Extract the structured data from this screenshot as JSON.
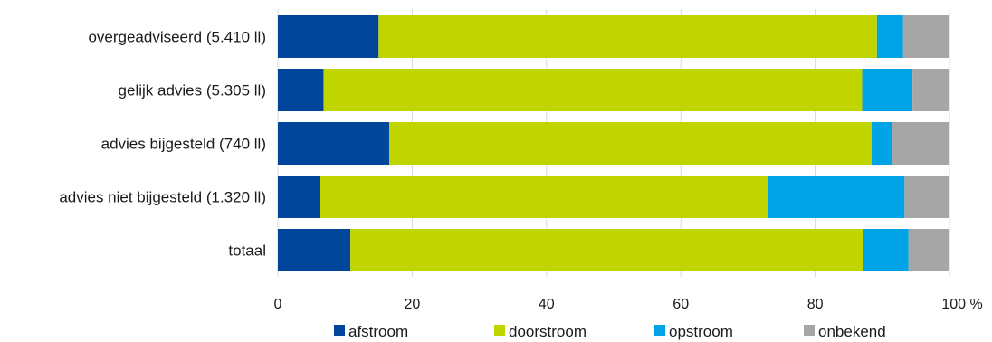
{
  "chart_data": {
    "type": "bar",
    "orientation": "horizontal",
    "stacked": true,
    "title": "",
    "xlabel": "",
    "ylabel": "",
    "categories": [
      "overgeadviseerd (5.410 ll)",
      "gelijk advies (5.305 ll)",
      "advies bijgesteld (740 ll)",
      "advies niet bijgesteld (1.320 ll)",
      "totaal"
    ],
    "series": [
      {
        "name": "afstroom",
        "color": "#00479b",
        "values": [
          15.0,
          6.8,
          16.6,
          6.3,
          10.8
        ]
      },
      {
        "name": "doorstroom",
        "color": "#c0d400",
        "values": [
          74.2,
          80.2,
          71.8,
          66.6,
          76.3
        ]
      },
      {
        "name": "opstroom",
        "color": "#00a3e5",
        "values": [
          3.9,
          7.5,
          3.1,
          20.4,
          6.8
        ]
      },
      {
        "name": "onbekend",
        "color": "#a6a6a6",
        "values": [
          6.9,
          5.5,
          8.5,
          6.7,
          6.1
        ]
      }
    ],
    "xlim": [
      0,
      100
    ],
    "xticks": [
      "0",
      "20",
      "40",
      "60",
      "80",
      "100"
    ],
    "x_unit": "%",
    "grid": true,
    "legend": "bottom"
  }
}
